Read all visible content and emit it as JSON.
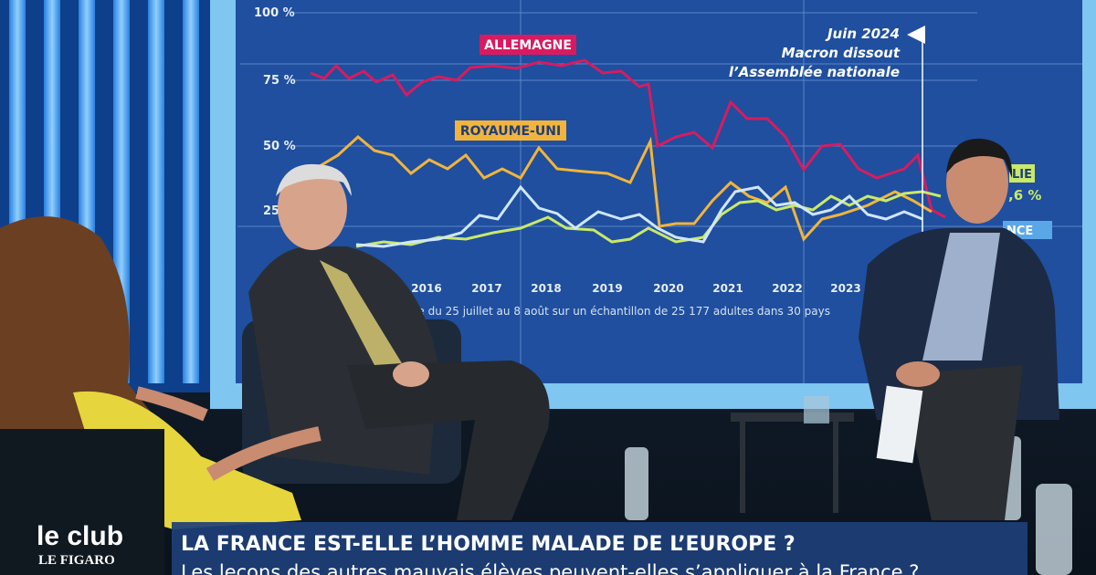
{
  "screen": {
    "y_labels": [
      "100 %",
      "75 %",
      "50 %",
      "25"
    ],
    "years": [
      "2016",
      "2017",
      "2018",
      "2019",
      "2020",
      "2021",
      "2022",
      "2023"
    ],
    "series_labels": {
      "germany": "ALLEMAGNE",
      "uk": "ROYAUME-UNI",
      "italy": "LIE",
      "italy_value": ",6 %",
      "france": "NCE"
    },
    "annotation": [
      "Juin 2024",
      "Macron dissout",
      "l’Assemblée nationale"
    ],
    "source": "ée du 25 juillet au 8 août sur un échantillon de 25 177 adultes dans 30 pays"
  },
  "logo": {
    "line1": "le club",
    "line2": "LE FIGARO"
  },
  "banner": {
    "title": "LA FRANCE EST-ELLE L’HOMME MALADE DE L’EUROPE ?",
    "subtitle": "Les leçons des autres mauvais élèves peuvent-elles s’appliquer à la France ?"
  }
}
